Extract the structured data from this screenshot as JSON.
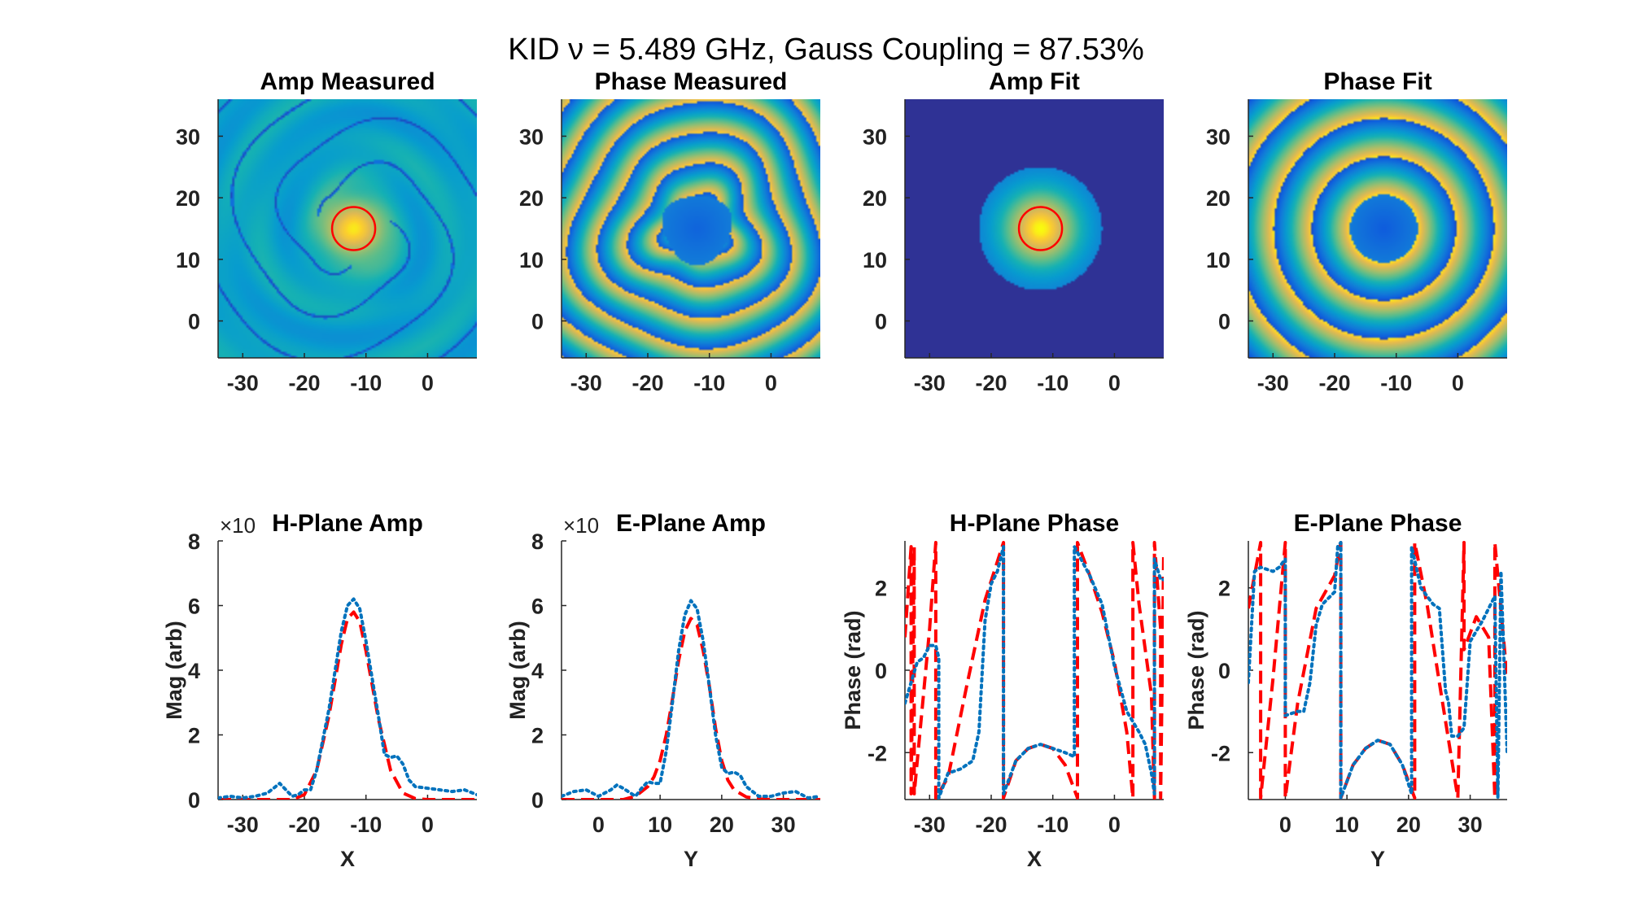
{
  "figure": {
    "suptitle": "KID ν = 5.489 GHz, Gauss Coupling = 87.53%"
  },
  "chart_data": [
    {
      "id": "amp-measured",
      "type": "heatmap",
      "title": "Amp Measured",
      "colormap": "parula",
      "xlim": [
        -34,
        8
      ],
      "ylim": [
        -6,
        36
      ],
      "xticks": [
        -30,
        -20,
        -10,
        0
      ],
      "yticks": [
        0,
        10,
        20,
        30
      ],
      "pattern": "measured-amp",
      "beam_center": [
        -12,
        15
      ],
      "contour_radius": 3.5,
      "contour_color": "#ff0000"
    },
    {
      "id": "phase-measured",
      "type": "heatmap",
      "title": "Phase Measured",
      "colormap": "parula",
      "xlim": [
        -34,
        8
      ],
      "ylim": [
        -6,
        36
      ],
      "xticks": [
        -30,
        -20,
        -10,
        0
      ],
      "yticks": [
        0,
        10,
        20,
        30
      ],
      "pattern": "measured-phase",
      "beam_center": [
        -12,
        15
      ]
    },
    {
      "id": "amp-fit",
      "type": "heatmap",
      "title": "Amp Fit",
      "colormap": "parula",
      "xlim": [
        -34,
        8
      ],
      "ylim": [
        -6,
        36
      ],
      "xticks": [
        -30,
        -20,
        -10,
        0
      ],
      "yticks": [
        0,
        10,
        20,
        30
      ],
      "pattern": "fit-amp",
      "beam_center": [
        -12,
        15
      ],
      "fit_radius": 10,
      "contour_radius": 3.5,
      "contour_color": "#ff0000"
    },
    {
      "id": "phase-fit",
      "type": "heatmap",
      "title": "Phase Fit",
      "colormap": "parula",
      "xlim": [
        -34,
        8
      ],
      "ylim": [
        -6,
        36
      ],
      "xticks": [
        -30,
        -20,
        -10,
        0
      ],
      "yticks": [
        0,
        10,
        20,
        30
      ],
      "pattern": "fit-phase",
      "beam_center": [
        -12,
        15
      ],
      "ring_period": 6.2,
      "inner_radius": 5.5
    },
    {
      "id": "h-plane-amp",
      "type": "line",
      "title": "H-Plane Amp",
      "xlabel": "X",
      "ylabel": "Mag (arb)",
      "exponent_label": "×10",
      "xlim": [
        -34,
        8
      ],
      "ylim": [
        0,
        8
      ],
      "xticks": [
        -30,
        -20,
        -10,
        0
      ],
      "yticks": [
        0,
        2,
        4,
        6,
        8
      ],
      "series": [
        {
          "name": "fit",
          "style": "dashed",
          "color": "#ff0000",
          "x": [
            -34,
            -22,
            -20,
            -18,
            -16,
            -14,
            -13,
            -12,
            -11,
            -10,
            -8,
            -6,
            -4,
            -2,
            0,
            8
          ],
          "y": [
            0,
            0,
            0.15,
            0.9,
            2.6,
            4.8,
            5.6,
            5.8,
            5.5,
            4.6,
            2.5,
            0.9,
            0.2,
            0.03,
            0,
            0
          ]
        },
        {
          "name": "measured",
          "style": "dotted",
          "color": "#0072bd",
          "x": [
            -34,
            -32,
            -30,
            -28,
            -26,
            -24,
            -22,
            -21,
            -20,
            -19,
            -18,
            -16,
            -14,
            -13,
            -12,
            -11,
            -10,
            -8,
            -7,
            -6,
            -5,
            -4,
            -3,
            -2,
            0,
            2,
            4,
            6,
            8
          ],
          "y": [
            0.05,
            0.1,
            0.05,
            0.1,
            0.2,
            0.5,
            0.1,
            0.15,
            0.3,
            0.3,
            0.9,
            2.8,
            5.2,
            6.0,
            6.2,
            5.9,
            4.9,
            2.6,
            1.4,
            1.3,
            1.35,
            1.1,
            0.6,
            0.4,
            0.35,
            0.3,
            0.25,
            0.3,
            0.15
          ]
        }
      ]
    },
    {
      "id": "e-plane-amp",
      "type": "line",
      "title": "E-Plane Amp",
      "xlabel": "Y",
      "ylabel": "Mag (arb)",
      "exponent_label": "×10",
      "xlim": [
        -6,
        36
      ],
      "ylim": [
        0,
        8
      ],
      "xticks": [
        0,
        10,
        20,
        30
      ],
      "yticks": [
        0,
        2,
        4,
        6,
        8
      ],
      "series": [
        {
          "name": "fit",
          "style": "dashed",
          "color": "#ff0000",
          "x": [
            -6,
            4,
            6,
            8,
            9,
            10,
            11,
            12,
            13,
            14,
            15,
            16,
            17,
            18,
            19,
            20,
            21,
            22,
            24,
            26,
            28,
            36
          ],
          "y": [
            0,
            0,
            0.1,
            0.4,
            0.7,
            1.2,
            2.0,
            3.1,
            4.3,
            5.2,
            5.6,
            5.4,
            4.6,
            3.5,
            2.2,
            1.2,
            0.6,
            0.3,
            0.08,
            0.02,
            0,
            0
          ]
        },
        {
          "name": "measured",
          "style": "dotted",
          "color": "#0072bd",
          "x": [
            -6,
            -4,
            -2,
            0,
            2,
            3,
            4,
            6,
            7,
            8,
            9,
            10,
            11,
            12,
            13,
            14,
            15,
            16,
            17,
            18,
            19,
            20,
            21,
            22,
            23,
            24,
            26,
            28,
            30,
            32,
            34,
            36
          ],
          "y": [
            0.1,
            0.25,
            0.3,
            0.1,
            0.3,
            0.45,
            0.35,
            0.1,
            0.35,
            0.55,
            0.5,
            0.5,
            1.5,
            3.0,
            4.6,
            5.7,
            6.15,
            5.9,
            4.9,
            3.5,
            2.0,
            1.0,
            0.8,
            0.85,
            0.75,
            0.4,
            0.1,
            0.1,
            0.2,
            0.25,
            0.05,
            0.1
          ]
        }
      ]
    },
    {
      "id": "h-plane-phase",
      "type": "line",
      "title": "H-Plane Phase",
      "xlabel": "X",
      "ylabel": "Phase (rad)",
      "xlim": [
        -34,
        8
      ],
      "ylim": [
        -3.14,
        3.14
      ],
      "xticks": [
        -30,
        -20,
        -10,
        0
      ],
      "yticks": [
        -2,
        0,
        2
      ],
      "series": [
        {
          "name": "fit",
          "style": "dashed",
          "color": "#ff0000",
          "x": [
            -34,
            -33,
            -33,
            -32.5,
            -32.5,
            -30,
            -29,
            -29,
            -27,
            -27,
            -24,
            -21,
            -18,
            -18,
            -16,
            -14,
            -12,
            -10,
            -8,
            -6,
            -6,
            -4,
            -2,
            0,
            2,
            3,
            3,
            4,
            6,
            6.5,
            6.5,
            7.5,
            7.5,
            8
          ],
          "y": [
            0.8,
            3.0,
            -3.0,
            3.0,
            -3.0,
            1.0,
            3.1,
            -3.1,
            -2.6,
            -2.6,
            -0.4,
            1.7,
            3.1,
            -3.1,
            -2.2,
            -1.9,
            -1.8,
            -1.9,
            -2.3,
            -3.1,
            3.1,
            2.3,
            1.4,
            0.2,
            -1.5,
            -3.1,
            3.1,
            1.6,
            -0.6,
            -3.1,
            3.1,
            1.0,
            -3.1,
            2.9
          ]
        },
        {
          "name": "measured",
          "style": "dotted",
          "color": "#0072bd",
          "x": [
            -34,
            -32,
            -31,
            -30,
            -29,
            -28.5,
            -28.5,
            -27,
            -25,
            -23,
            -22,
            -21,
            -20,
            -19,
            -18,
            -18,
            -16,
            -14,
            -12,
            -10,
            -8,
            -6.5,
            -6.5,
            -4,
            -2,
            0,
            2,
            4,
            5,
            6,
            6.5,
            6.5,
            7.5,
            8
          ],
          "y": [
            -0.8,
            0.2,
            0.3,
            0.6,
            0.6,
            0.3,
            -3.1,
            -2.5,
            -2.4,
            -2.2,
            -1.5,
            1.2,
            2.1,
            2.4,
            3.0,
            -3.0,
            -2.2,
            -1.9,
            -1.8,
            -1.9,
            -2.0,
            -2.1,
            3.0,
            2.3,
            1.6,
            0.1,
            -1.0,
            -1.5,
            -1.8,
            -2.5,
            -3.0,
            2.7,
            2.2,
            2.2
          ]
        }
      ]
    },
    {
      "id": "e-plane-phase",
      "type": "line",
      "title": "E-Plane Phase",
      "xlabel": "Y",
      "ylabel": "Phase (rad)",
      "xlim": [
        -6,
        36
      ],
      "ylim": [
        -3.14,
        3.14
      ],
      "xticks": [
        0,
        10,
        20,
        30
      ],
      "yticks": [
        -2,
        0,
        2
      ],
      "series": [
        {
          "name": "fit",
          "style": "dashed",
          "color": "#ff0000",
          "x": [
            -6,
            -4,
            -4,
            -2,
            0,
            0,
            2,
            5,
            8,
            9,
            9,
            11,
            13,
            15,
            17,
            19,
            21,
            21,
            23,
            25,
            28,
            29,
            29,
            31,
            33,
            34,
            34,
            36
          ],
          "y": [
            1.5,
            3.1,
            -3.1,
            -0.2,
            3.1,
            -3.1,
            -0.8,
            1.5,
            2.3,
            3.1,
            -3.1,
            -2.3,
            -1.9,
            -1.7,
            -1.8,
            -2.3,
            -3.1,
            3.1,
            1.6,
            -0.3,
            -3.1,
            3.1,
            0.5,
            1.3,
            0.8,
            -3.1,
            3.1,
            -0.2
          ]
        },
        {
          "name": "measured",
          "style": "dotted",
          "color": "#0072bd",
          "x": [
            -6,
            -5,
            -4,
            -2,
            -1,
            0,
            0,
            2,
            3,
            4,
            5,
            6,
            8,
            8.5,
            9,
            9,
            11,
            13,
            15,
            17,
            19,
            20.5,
            20.5,
            22,
            24,
            25,
            26,
            26.5,
            27,
            28,
            29,
            30,
            32,
            33,
            34,
            34.5,
            35,
            36
          ],
          "y": [
            -0.3,
            2.4,
            2.5,
            2.4,
            2.5,
            2.7,
            -1.1,
            -1.0,
            -1.0,
            -0.3,
            1.1,
            1.6,
            1.9,
            3.0,
            3.1,
            -3.1,
            -2.3,
            -1.9,
            -1.7,
            -1.8,
            -2.3,
            -3.0,
            3.0,
            2.0,
            1.6,
            1.5,
            -0.5,
            -0.8,
            -1.6,
            -1.6,
            -1.4,
            0.7,
            1.2,
            1.5,
            1.8,
            -3.1,
            2.4,
            -2.0
          ]
        }
      ]
    }
  ]
}
